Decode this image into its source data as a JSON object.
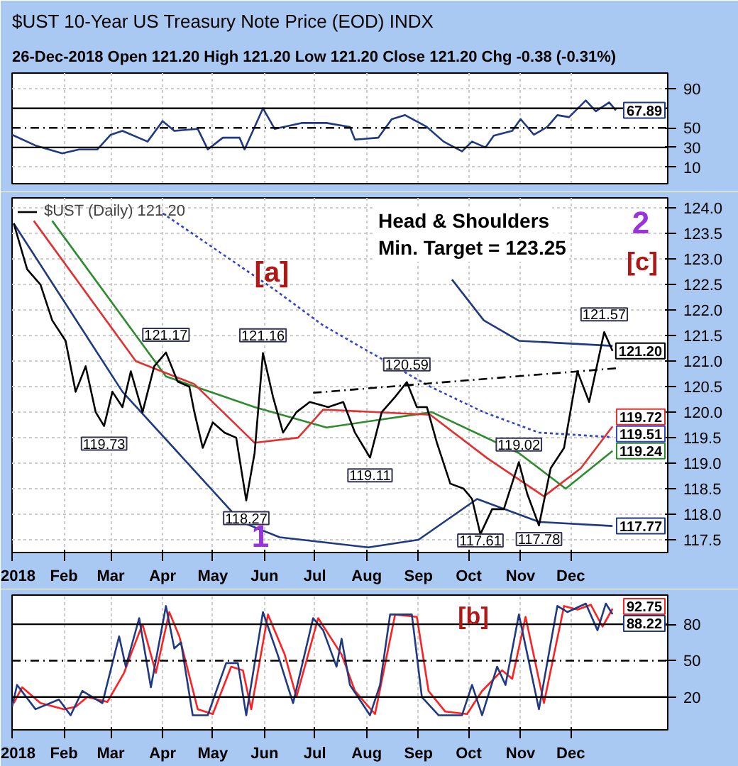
{
  "chart_data": [
    {
      "type": "line",
      "title": "$UST 10-Year US Treasury Note Price (EOD) INDX",
      "subtitle": "26-Dec-2018   Open 121.20  High 121.20  Low 121.20  Close 121.20  Chg -0.38 (-0.31%)",
      "tick_labels": "y",
      "grid": true,
      "xlim": [
        "2018-01-01",
        "2019-01-28"
      ],
      "xticks": [
        "2018-01-01",
        "2018-02-01",
        "2018-03-01",
        "2018-04-01",
        "2018-05-01",
        "2018-06-01",
        "2018-07-01",
        "2018-08-01",
        "2018-09-01",
        "2018-10-01",
        "2018-11-01",
        "2018-12-01"
      ],
      "ylim": [
        -7,
        106
      ],
      "yticks": [
        90,
        50,
        30,
        10
      ],
      "ref_lines": [
        {
          "axis": "y",
          "value": 70,
          "color": "#000000",
          "line_style": "solid"
        },
        {
          "axis": "y",
          "value": 50,
          "color": "#000000",
          "line_style": "dashed"
        },
        {
          "axis": "y",
          "value": 30,
          "color": "#000000",
          "line_style": "solid"
        }
      ],
      "series": [
        {
          "color": "#1f3a80",
          "x": [
            "2018-01-01",
            "2018-01-15",
            "2018-01-23",
            "2018-01-31",
            "2018-02-10",
            "2018-02-21",
            "2018-03-01",
            "2018-03-08",
            "2018-03-23",
            "2018-04-01",
            "2018-04-08",
            "2018-04-22",
            "2018-04-28",
            "2018-05-07",
            "2018-05-17",
            "2018-05-20",
            "2018-05-31",
            "2018-06-07",
            "2018-06-23",
            "2018-07-08",
            "2018-07-22",
            "2018-07-25",
            "2018-08-08",
            "2018-08-16",
            "2018-08-24",
            "2018-09-06",
            "2018-09-16",
            "2018-09-27",
            "2018-10-03",
            "2018-10-11",
            "2018-10-16",
            "2018-10-27",
            "2018-11-01",
            "2018-11-09",
            "2018-11-17",
            "2018-11-23",
            "2018-11-30",
            "2018-12-10",
            "2018-12-16",
            "2018-12-24",
            "2018-12-28"
          ],
          "values": [
            43,
            32,
            28,
            24,
            28,
            28,
            43,
            47,
            36,
            57,
            47,
            49,
            28,
            40,
            40,
            28,
            70,
            49,
            55,
            55,
            51,
            38,
            40,
            59,
            63,
            51,
            36,
            26,
            36,
            30,
            42,
            47,
            59,
            43,
            51,
            63,
            61,
            78,
            67,
            76,
            67.89
          ],
          "value_labels": [
            null,
            null,
            null,
            null,
            null,
            null,
            null,
            null,
            null,
            null,
            null,
            null,
            null,
            null,
            null,
            null,
            null,
            null,
            null,
            null,
            null,
            null,
            null,
            null,
            null,
            null,
            null,
            null,
            null,
            null,
            null,
            null,
            null,
            null,
            null,
            null,
            null,
            null,
            null,
            null,
            "67.89"
          ]
        }
      ]
    },
    {
      "type": "line",
      "legend": "top left",
      "grid": true,
      "xlim": [
        "2018-01-01",
        "2019-01-28"
      ],
      "xticks": [
        {
          "value": "2018-01-01",
          "label": "2018"
        },
        {
          "value": "2018-02-01",
          "label": "Feb"
        },
        {
          "value": "2018-03-01",
          "label": "Mar"
        },
        {
          "value": "2018-04-01",
          "label": "Apr"
        },
        {
          "value": "2018-05-01",
          "label": "May"
        },
        {
          "value": "2018-06-01",
          "label": "Jun"
        },
        {
          "value": "2018-07-01",
          "label": "Jul"
        },
        {
          "value": "2018-08-01",
          "label": "Aug"
        },
        {
          "value": "2018-09-01",
          "label": "Sep"
        },
        {
          "value": "2018-10-01",
          "label": "Oct"
        },
        {
          "value": "2018-11-01",
          "label": "Nov"
        },
        {
          "value": "2018-12-01",
          "label": "Dec"
        }
      ],
      "ylim": [
        117.25,
        124.2
      ],
      "yticks": [
        {
          "value": 117.5,
          "label": "117.5"
        },
        {
          "value": 118,
          "label": "118.0"
        },
        {
          "value": 118.5,
          "label": "118.5"
        },
        {
          "value": 119,
          "label": "119.0"
        },
        {
          "value": 119.5,
          "label": "119.5"
        },
        {
          "value": 120,
          "label": "120.0"
        },
        {
          "value": 120.5,
          "label": "120.5"
        },
        {
          "value": 121,
          "label": "121.0"
        },
        {
          "value": 121.5,
          "label": "121.5"
        },
        {
          "value": 122,
          "label": "122.0"
        },
        {
          "value": 122.5,
          "label": "122.5"
        },
        {
          "value": 123,
          "label": "123.0"
        },
        {
          "value": 123.5,
          "label": "123.5"
        },
        {
          "value": 124,
          "label": "124.0"
        }
      ],
      "annotations": [
        "Head & Shoulders\nMin. Target = 123.25",
        "[a]",
        "1",
        "2",
        "[c]"
      ],
      "series": [
        {
          "color": "#1f3a80",
          "x": [
            "2018-01-02",
            "2018-03-08",
            "2018-04-16",
            "2018-05-18",
            "2018-06-10",
            "2018-08-02",
            "2018-09-01",
            "2018-10-06",
            "2018-11-12",
            "2018-12-26"
          ],
          "values": [
            123.7,
            120.4,
            119.0,
            117.85,
            117.55,
            117.35,
            117.5,
            118.3,
            117.85,
            117.77
          ],
          "value_labels": [
            null,
            null,
            null,
            null,
            null,
            null,
            null,
            null,
            null,
            "117.77"
          ]
        },
        {
          "color": "#1f3a80",
          "x": [
            "2018-09-21",
            "2018-10-10",
            "2018-10-31",
            "2018-12-26"
          ],
          "values": [
            122.6,
            121.8,
            121.4,
            121.3
          ]
        },
        {
          "color": "#3344cc",
          "line_style": "dotted",
          "x": [
            "2018-04-01",
            "2018-06-07",
            "2018-07-06",
            "2018-09-08",
            "2018-10-10",
            "2018-11-12",
            "2018-12-26"
          ],
          "values": [
            123.9,
            122.4,
            121.7,
            120.5,
            120.0,
            119.6,
            119.51
          ],
          "value_labels": [
            null,
            null,
            null,
            null,
            null,
            null,
            "119.51"
          ]
        },
        {
          "color": "#2e8b2e",
          "x": [
            "2018-01-25",
            "2018-04-03",
            "2018-05-26",
            "2018-07-08",
            "2018-09-09",
            "2018-10-31",
            "2018-11-28",
            "2018-12-26"
          ],
          "values": [
            123.75,
            120.7,
            120.1,
            119.7,
            120.0,
            119.2,
            118.5,
            119.24
          ],
          "value_labels": [
            null,
            null,
            null,
            null,
            null,
            null,
            null,
            "119.24"
          ]
        },
        {
          "color": "#e03030",
          "x": [
            "2018-01-14",
            "2018-03-16",
            "2018-04-20",
            "2018-05-26",
            "2018-06-21",
            "2018-07-06",
            "2018-09-08",
            "2018-10-12",
            "2018-11-15",
            "2018-12-07",
            "2018-12-26"
          ],
          "values": [
            123.75,
            121.0,
            120.55,
            119.4,
            119.5,
            120.05,
            119.95,
            119.1,
            118.35,
            118.9,
            119.72
          ],
          "value_labels": [
            null,
            null,
            null,
            null,
            null,
            null,
            null,
            null,
            null,
            null,
            "119.72"
          ]
        },
        {
          "color": "#000000",
          "line_style": "dashed",
          "x": [
            "2018-06-30",
            "2018-12-28"
          ],
          "values": [
            120.38,
            120.86
          ]
        },
        {
          "name": "$UST (Daily) 121.20",
          "color": "#000000",
          "x": [
            "2018-01-02",
            "2018-01-10",
            "2018-01-18",
            "2018-01-25",
            "2018-02-02",
            "2018-02-08",
            "2018-02-14",
            "2018-02-20",
            "2018-02-25",
            "2018-03-02",
            "2018-03-08",
            "2018-03-13",
            "2018-03-20",
            "2018-03-27",
            "2018-04-03",
            "2018-04-10",
            "2018-04-17",
            "2018-04-20",
            "2018-04-25",
            "2018-05-01",
            "2018-05-08",
            "2018-05-15",
            "2018-05-21",
            "2018-05-26",
            "2018-05-31",
            "2018-06-06",
            "2018-06-12",
            "2018-06-20",
            "2018-06-28",
            "2018-07-09",
            "2018-07-18",
            "2018-07-25",
            "2018-08-03",
            "2018-08-10",
            "2018-08-18",
            "2018-08-25",
            "2018-08-31",
            "2018-09-06",
            "2018-09-12",
            "2018-09-20",
            "2018-09-28",
            "2018-10-03",
            "2018-10-08",
            "2018-10-15",
            "2018-10-22",
            "2018-10-31",
            "2018-11-05",
            "2018-11-12",
            "2018-11-19",
            "2018-11-27",
            "2018-12-05",
            "2018-12-12",
            "2018-12-21",
            "2018-12-26"
          ],
          "values": [
            123.7,
            122.8,
            122.5,
            121.8,
            121.4,
            120.4,
            120.9,
            120.0,
            119.73,
            120.4,
            120.1,
            120.8,
            120.0,
            120.9,
            121.17,
            120.6,
            120.5,
            120.0,
            119.3,
            119.8,
            119.6,
            119.5,
            118.27,
            119.2,
            121.16,
            120.3,
            119.6,
            120.0,
            120.2,
            120.1,
            120.2,
            119.6,
            119.11,
            120.0,
            120.3,
            120.59,
            120.1,
            120.1,
            119.4,
            118.6,
            118.5,
            118.3,
            117.61,
            118.1,
            118.1,
            119.02,
            118.4,
            117.78,
            118.9,
            119.3,
            120.8,
            120.2,
            121.57,
            121.2
          ],
          "value_labels": [
            null,
            null,
            null,
            null,
            null,
            null,
            null,
            null,
            "119.73",
            null,
            null,
            null,
            null,
            null,
            "121.17",
            null,
            null,
            null,
            null,
            null,
            null,
            null,
            "118.27",
            null,
            "121.16",
            null,
            null,
            null,
            null,
            null,
            null,
            null,
            "119.11",
            null,
            null,
            "120.59",
            null,
            null,
            null,
            null,
            null,
            null,
            "117.61",
            null,
            null,
            "119.02",
            null,
            "117.78",
            null,
            null,
            null,
            null,
            "121.57",
            "121.20"
          ]
        }
      ]
    },
    {
      "type": "line",
      "grid": true,
      "xlim": [
        "2018-01-01",
        "2019-01-28"
      ],
      "xticks": [
        {
          "value": "2018-01-01",
          "label": "2018"
        },
        {
          "value": "2018-02-01",
          "label": "Feb"
        },
        {
          "value": "2018-03-01",
          "label": "Mar"
        },
        {
          "value": "2018-04-01",
          "label": "Apr"
        },
        {
          "value": "2018-05-01",
          "label": "May"
        },
        {
          "value": "2018-06-01",
          "label": "Jun"
        },
        {
          "value": "2018-07-01",
          "label": "Jul"
        },
        {
          "value": "2018-08-01",
          "label": "Aug"
        },
        {
          "value": "2018-09-01",
          "label": "Sep"
        },
        {
          "value": "2018-10-01",
          "label": "Oct"
        },
        {
          "value": "2018-11-01",
          "label": "Nov"
        },
        {
          "value": "2018-12-01",
          "label": "Dec"
        }
      ],
      "ylim": [
        -7,
        104
      ],
      "yticks": [
        80,
        50,
        20
      ],
      "ref_lines": [
        {
          "axis": "y",
          "value": 80,
          "color": "#000000",
          "line_style": "solid"
        },
        {
          "axis": "y",
          "value": 50,
          "color": "#000000",
          "line_style": "dashed"
        },
        {
          "axis": "y",
          "value": 20,
          "color": "#000000",
          "line_style": "solid"
        }
      ],
      "annotations": [
        "[b]"
      ],
      "series": [
        {
          "color": "#ff2020",
          "x": [
            "2018-01-02",
            "2018-01-07",
            "2018-01-18",
            "2018-02-01",
            "2018-02-08",
            "2018-02-15",
            "2018-02-27",
            "2018-03-09",
            "2018-03-13",
            "2018-03-20",
            "2018-03-28",
            "2018-04-05",
            "2018-04-11",
            "2018-04-22",
            "2018-05-01",
            "2018-05-12",
            "2018-05-19",
            "2018-05-24",
            "2018-06-03",
            "2018-06-13",
            "2018-06-20",
            "2018-07-03",
            "2018-07-17",
            "2018-07-25",
            "2018-08-06",
            "2018-08-18",
            "2018-08-31",
            "2018-09-07",
            "2018-09-17",
            "2018-09-30",
            "2018-10-09",
            "2018-10-21",
            "2018-10-27",
            "2018-11-04",
            "2018-11-15",
            "2018-11-27",
            "2018-12-05",
            "2018-12-13",
            "2018-12-20",
            "2018-12-26"
          ],
          "values": [
            15,
            28,
            15,
            10,
            12,
            20,
            16,
            40,
            55,
            80,
            40,
            90,
            70,
            10,
            6,
            45,
            42,
            10,
            88,
            55,
            20,
            85,
            55,
            25,
            6,
            88,
            86,
            25,
            8,
            6,
            25,
            42,
            35,
            86,
            15,
            95,
            92,
            96,
            78,
            92.75
          ],
          "value_labels": [
            null,
            null,
            null,
            null,
            null,
            null,
            null,
            null,
            null,
            null,
            null,
            null,
            null,
            null,
            null,
            null,
            null,
            null,
            null,
            null,
            null,
            null,
            null,
            null,
            null,
            null,
            null,
            null,
            null,
            null,
            null,
            null,
            null,
            null,
            null,
            null,
            null,
            null,
            null,
            "92.75"
          ]
        },
        {
          "color": "#1f3a80",
          "x": [
            "2018-01-01",
            "2018-01-04",
            "2018-01-15",
            "2018-01-29",
            "2018-02-05",
            "2018-02-12",
            "2018-02-24",
            "2018-03-06",
            "2018-03-10",
            "2018-03-18",
            "2018-03-25",
            "2018-04-03",
            "2018-04-08",
            "2018-04-12",
            "2018-04-19",
            "2018-04-28",
            "2018-05-09",
            "2018-05-16",
            "2018-05-21",
            "2018-05-31",
            "2018-06-10",
            "2018-06-18",
            "2018-06-30",
            "2018-07-06",
            "2018-07-14",
            "2018-07-17",
            "2018-07-22",
            "2018-08-03",
            "2018-08-09",
            "2018-08-15",
            "2018-08-28",
            "2018-09-03",
            "2018-09-13",
            "2018-09-27",
            "2018-10-03",
            "2018-10-09",
            "2018-10-18",
            "2018-10-23",
            "2018-10-31",
            "2018-11-12",
            "2018-11-23",
            "2018-11-29",
            "2018-12-10",
            "2018-12-17",
            "2018-12-22",
            "2018-12-26"
          ],
          "values": [
            12,
            30,
            10,
            18,
            5,
            25,
            15,
            70,
            45,
            85,
            28,
            95,
            60,
            65,
            5,
            5,
            48,
            48,
            5,
            90,
            50,
            15,
            85,
            75,
            45,
            68,
            30,
            5,
            30,
            88,
            88,
            20,
            5,
            5,
            30,
            5,
            45,
            30,
            88,
            10,
            95,
            90,
            97,
            75,
            97,
            88.22
          ],
          "value_labels": [
            null,
            null,
            null,
            null,
            null,
            null,
            null,
            null,
            null,
            null,
            null,
            null,
            null,
            null,
            null,
            null,
            null,
            null,
            null,
            null,
            null,
            null,
            null,
            null,
            null,
            null,
            null,
            null,
            null,
            null,
            null,
            null,
            null,
            null,
            null,
            null,
            null,
            null,
            null,
            null,
            null,
            null,
            null,
            null,
            null,
            "88.22"
          ]
        }
      ]
    }
  ]
}
